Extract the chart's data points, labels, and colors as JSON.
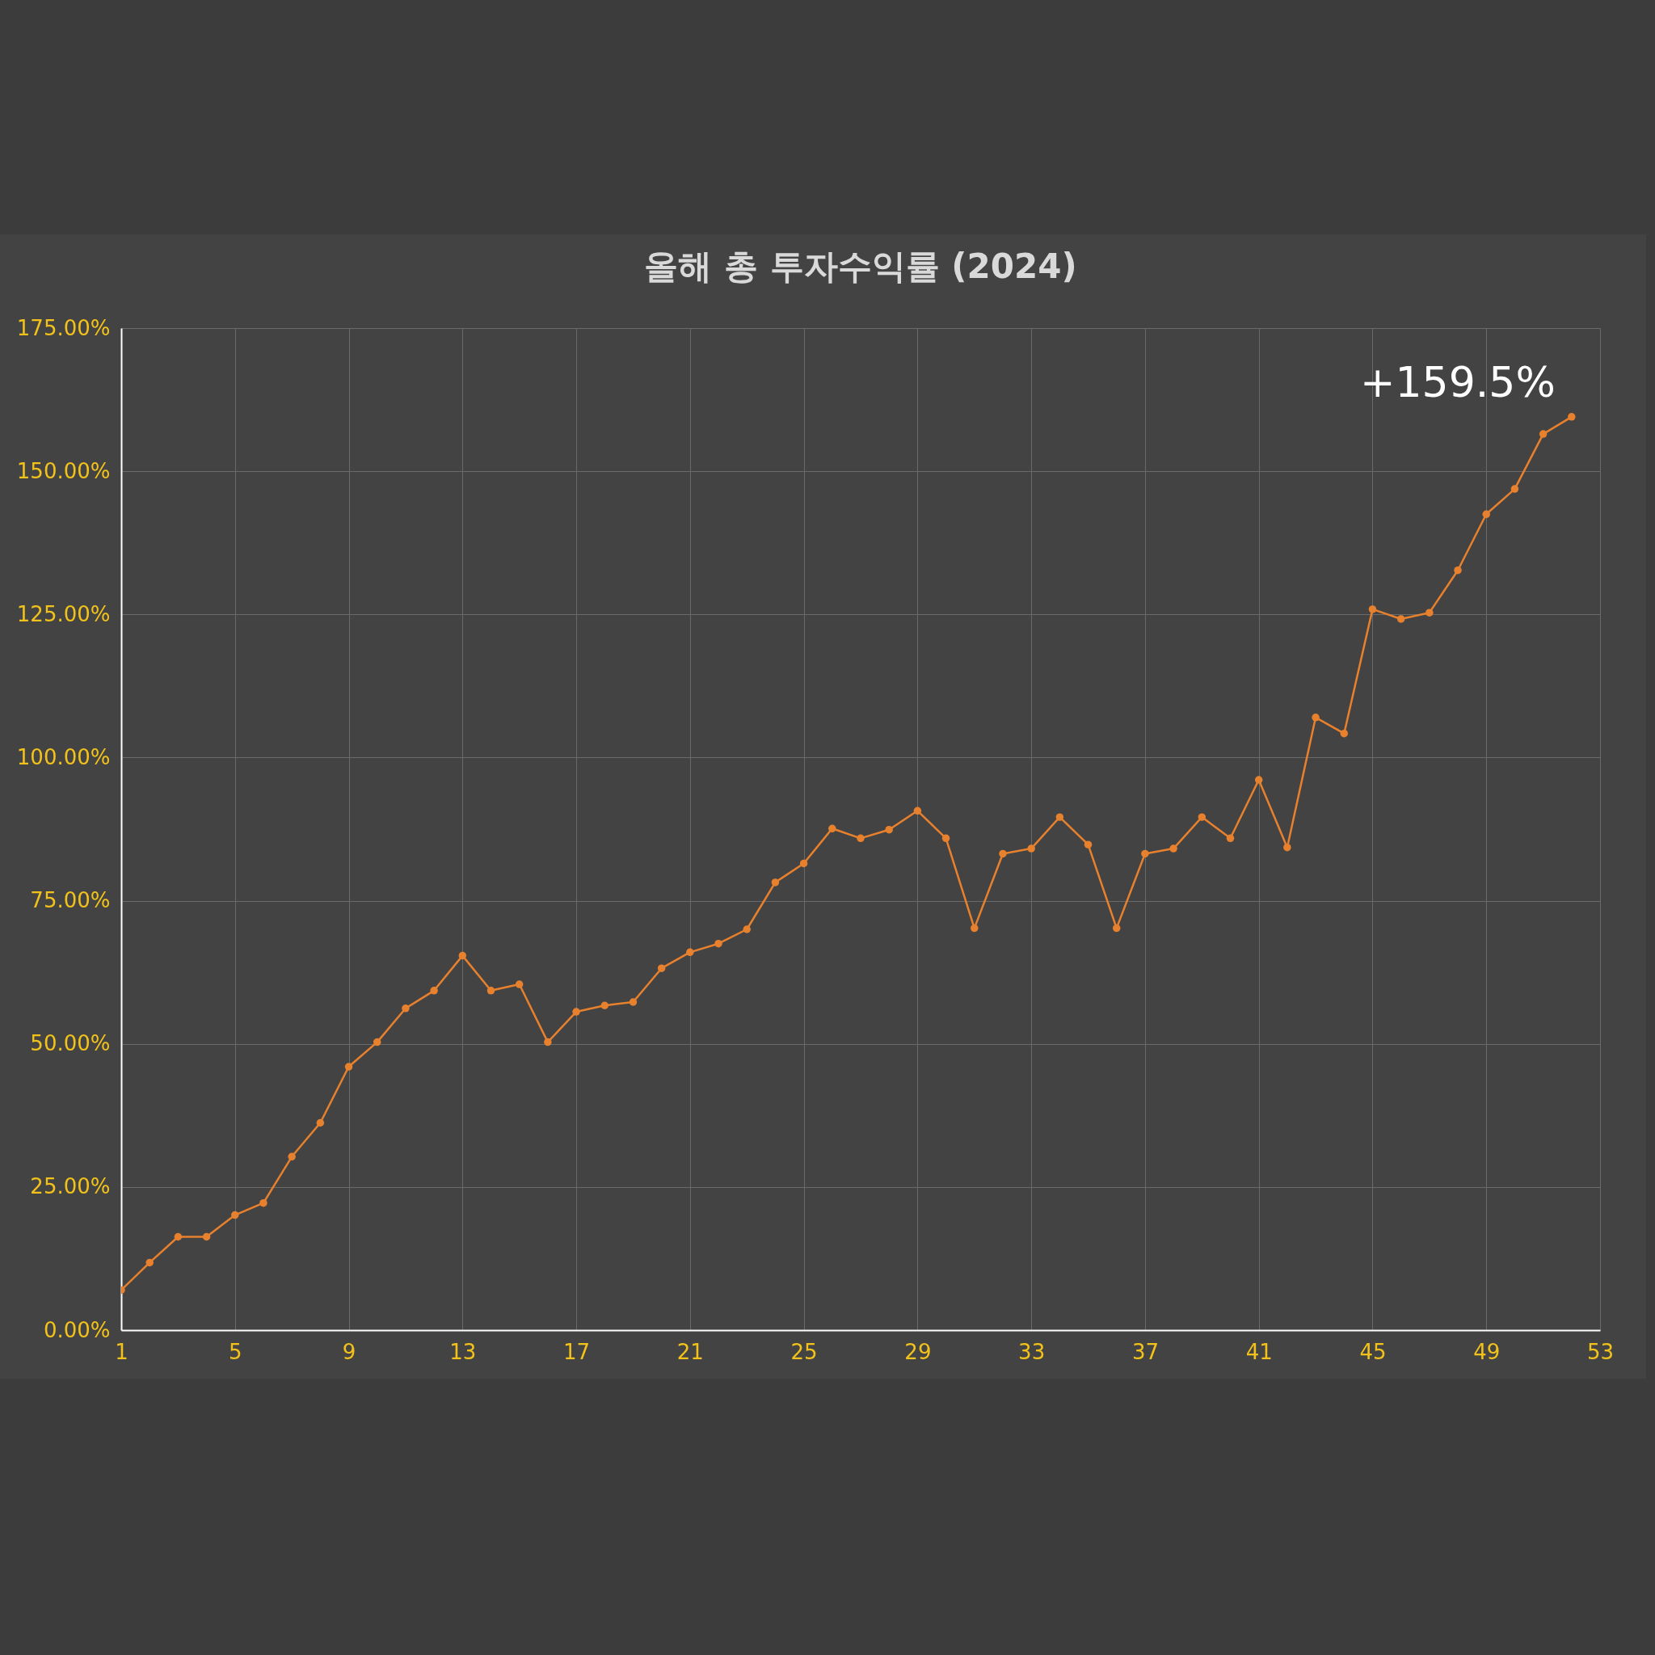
{
  "chart_data": {
    "type": "line",
    "title": "올해 총 투자수익률 (2024)",
    "x": [
      1,
      2,
      3,
      4,
      5,
      6,
      7,
      8,
      9,
      10,
      11,
      12,
      13,
      14,
      15,
      16,
      17,
      18,
      19,
      20,
      21,
      22,
      23,
      24,
      25,
      26,
      27,
      28,
      29,
      30,
      31,
      32,
      33,
      34,
      35,
      36,
      37,
      38,
      39,
      40,
      41,
      42,
      43,
      44,
      45,
      46,
      47,
      48,
      49,
      50,
      51,
      52
    ],
    "series": [
      {
        "color": "#e8812e",
        "values": [
          7.0,
          11.8,
          16.3,
          16.3,
          20.1,
          22.2,
          30.3,
          36.2,
          46.0,
          50.3,
          56.2,
          59.3,
          65.4,
          59.3,
          60.4,
          50.3,
          55.6,
          56.7,
          57.3,
          63.2,
          66.0,
          67.5,
          70.0,
          78.2,
          81.5,
          87.6,
          85.9,
          87.4,
          90.7,
          85.9,
          70.2,
          83.2,
          84.1,
          89.6,
          84.8,
          70.2,
          83.2,
          84.1,
          89.6,
          85.9,
          96.1,
          84.3,
          107.0,
          104.2,
          125.9,
          124.2,
          125.3,
          132.7,
          142.5,
          146.9,
          156.5,
          159.5
        ]
      }
    ],
    "xlim": [
      1,
      53
    ],
    "xticks": [
      1,
      5,
      9,
      13,
      17,
      21,
      25,
      29,
      33,
      37,
      41,
      45,
      49,
      53
    ],
    "ylim": [
      0,
      175
    ],
    "yticks": [
      {
        "value": 0,
        "label": "0.00%"
      },
      {
        "value": 25,
        "label": "25.00%"
      },
      {
        "value": 50,
        "label": "50.00%"
      },
      {
        "value": 75,
        "label": "75.00%"
      },
      {
        "value": 100,
        "label": "100.00%"
      },
      {
        "value": 125,
        "label": "125.00%"
      },
      {
        "value": 150,
        "label": "150.00%"
      },
      {
        "value": 175,
        "label": "175.00%"
      }
    ],
    "annotations": [
      {
        "text": "+159.5%",
        "x": 52,
        "y": 159.5
      }
    ],
    "grid": true,
    "marker": "circle",
    "line_style": "solid"
  }
}
